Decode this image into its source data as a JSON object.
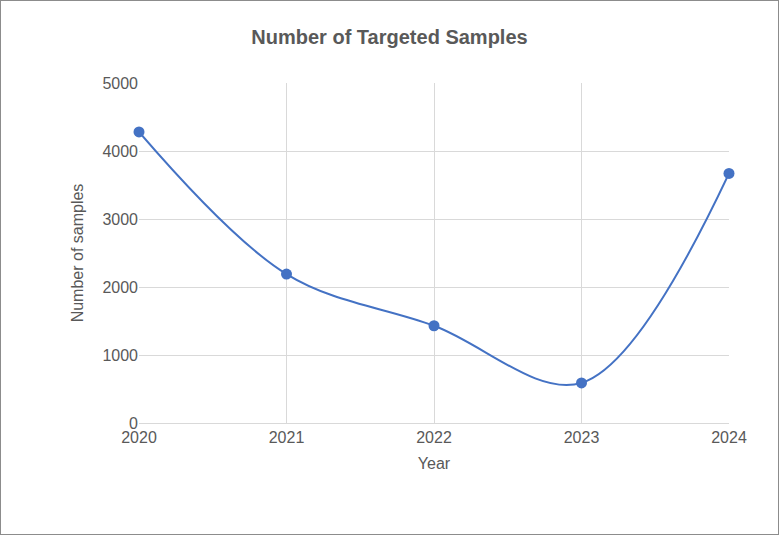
{
  "chart_data": {
    "type": "line",
    "title": "Number of Targeted Samples",
    "x_label": "Year",
    "y_label": "Number of samples",
    "x": [
      2020,
      2021,
      2022,
      2023,
      2024
    ],
    "values": [
      4280,
      2190,
      1430,
      590,
      3670
    ],
    "color": "#4472c4",
    "marker": "circle",
    "line_style": "smooth",
    "xlim": [
      2020,
      2024
    ],
    "xticks": [
      2020,
      2021,
      2022,
      2023,
      2024
    ],
    "ylim": [
      0,
      5000
    ],
    "yticks": [
      0,
      1000,
      2000,
      3000,
      4000,
      5000
    ],
    "grid": true
  }
}
